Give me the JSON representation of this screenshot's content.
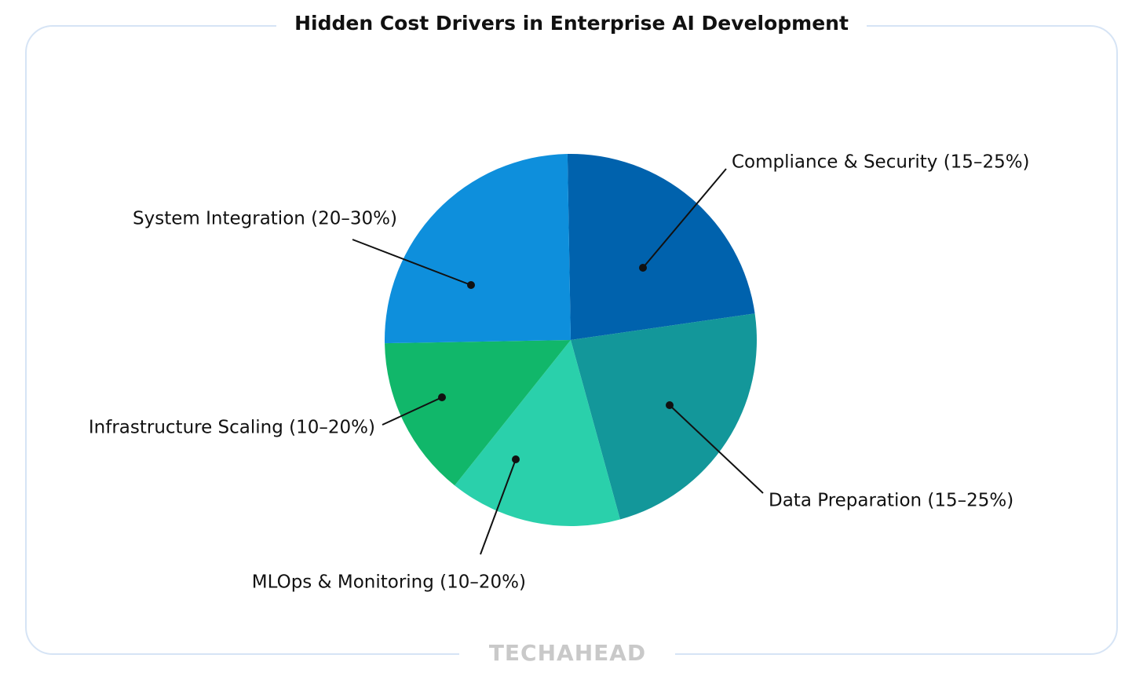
{
  "chart_data": {
    "type": "pie",
    "title": "Hidden Cost Drivers in Enterprise AI Development",
    "categories": [
      "Compliance & Security (15–25%)",
      "Data Preparation (15–25%)",
      "MLOps & Monitoring (10–20%)",
      "Infrastructure Scaling (10–20%)",
      "System Integration (20–30%)"
    ],
    "values": [
      23,
      23,
      15,
      14,
      25
    ],
    "colors": [
      "#0062ad",
      "#13979a",
      "#2ad0ab",
      "#11b76a",
      "#0e8fdc"
    ],
    "watermark": "TECHAHEAD"
  }
}
